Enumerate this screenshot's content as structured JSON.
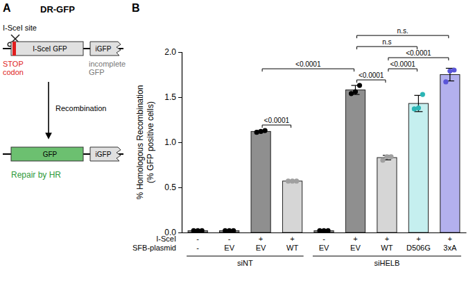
{
  "diagram": {
    "panel_label": "A",
    "title": "DR-GFP",
    "cut_site": "I-SceI site",
    "gene": "I-SceI GFP",
    "partial_gene": "iGFP",
    "stop": [
      "STOP",
      "codon"
    ],
    "partial_note": [
      "incomplete",
      "GFP"
    ],
    "step": "Recombination",
    "repaired_gene": "GFP",
    "repaired_partial_gene": "iGFP",
    "result": "Repair by HR"
  },
  "chart_data": {
    "type": "bar",
    "panel_label": "B",
    "ylabel": [
      "% Homologous Recombination",
      "(% GFP positive cells)"
    ],
    "categories": [
      "-",
      "EV",
      "EV",
      "WT",
      "EV",
      "EV",
      "WT",
      "D506G",
      "3xA"
    ],
    "category_label": "SFB-plasmid",
    "x_rows": [
      {
        "label": "I-SceI",
        "values": [
          "-",
          "-",
          "+",
          "+",
          "-",
          "+",
          "+",
          "+",
          "+"
        ]
      }
    ],
    "x_groups": [
      {
        "label": "siNT",
        "size": 4
      },
      {
        "label": "siHELB",
        "size": 5
      }
    ],
    "values": [
      0.02,
      0.02,
      1.12,
      0.57,
      0.02,
      1.58,
      0.83,
      1.43,
      1.75
    ],
    "errors": [
      0.0,
      0.0,
      0.01,
      0.005,
      0.0,
      0.05,
      0.025,
      0.09,
      0.07
    ],
    "points": [
      [
        0.02,
        0.02,
        0.02
      ],
      [
        0.02,
        0.02,
        0.02
      ],
      [
        1.11,
        1.12,
        1.13
      ],
      [
        0.57,
        0.57,
        0.57
      ],
      [
        0.02,
        0.02,
        0.02
      ],
      [
        1.54,
        1.56,
        1.63
      ],
      [
        0.8,
        0.84,
        0.84
      ],
      [
        1.37,
        1.38,
        1.53
      ],
      [
        1.67,
        1.79,
        1.8
      ]
    ],
    "colors": [
      "#8f8f8f",
      "#8f8f8f",
      "#8f8f8f",
      "#d6d6d6",
      "#8f8f8f",
      "#8f8f8f",
      "#d6d6d6",
      "#c5efef",
      "#b3b0ee"
    ],
    "point_colors": [
      "#000000",
      "#000000",
      "#000000",
      "#a0a0a0",
      "#000000",
      "#000000",
      "#a0a0a0",
      "#2bb5b5",
      "#5a55d8"
    ],
    "ylim": [
      0,
      2
    ],
    "yticks": [
      {
        "value": 0,
        "label": "0.0"
      },
      {
        "value": 0.5,
        "label": "0.5"
      },
      {
        "value": 1,
        "label": "1.0"
      },
      {
        "value": 1.5,
        "label": "1.5"
      },
      {
        "value": 2,
        "label": "2.0"
      }
    ],
    "comparisons": [
      {
        "from": 2,
        "to": 3,
        "label": "<0.0001"
      },
      {
        "from": 5,
        "to": 6,
        "label": "<0.0001"
      },
      {
        "from": 6,
        "to": 7,
        "label": "<0.0001"
      },
      {
        "from": 2,
        "to": 5,
        "label": "<0.0001"
      },
      {
        "from": 6,
        "to": 8,
        "label": "<0.0001"
      },
      {
        "from": 5,
        "to": 7,
        "label": "n.s"
      },
      {
        "from": 5,
        "to": 8,
        "label": "n.s."
      }
    ],
    "grid": false
  }
}
